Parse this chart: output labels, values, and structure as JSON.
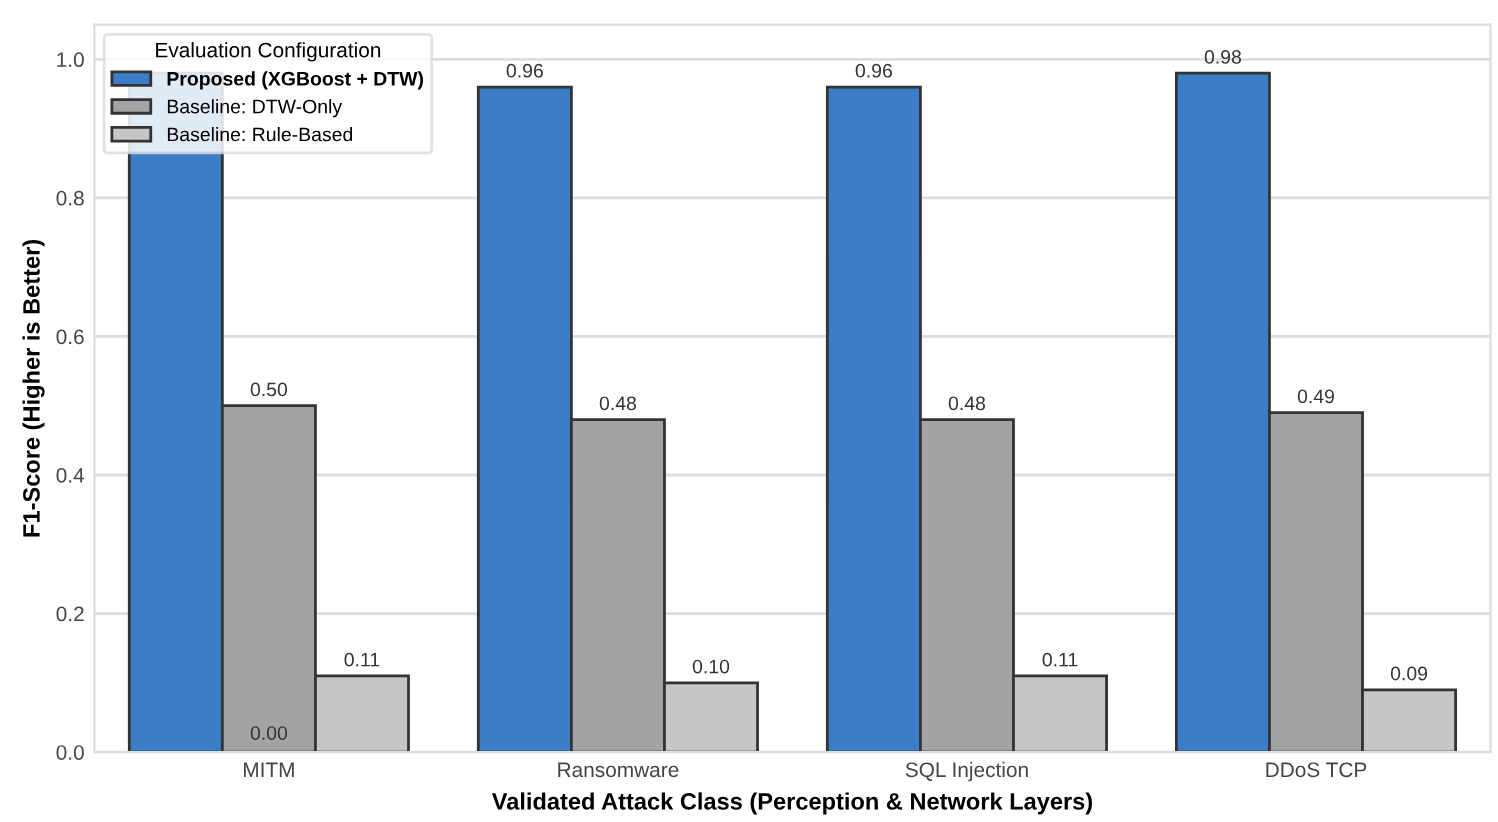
{
  "chart_data": {
    "type": "bar",
    "xlabel": "Validated Attack Class (Perception & Network Layers)",
    "ylabel": "F1-Score (Higher is Better)",
    "legend_title": "Evaluation Configuration",
    "categories": [
      "MITM",
      "Ransomware",
      "SQL Injection",
      "DDoS TCP"
    ],
    "series": [
      {
        "name": "Proposed (XGBoost + DTW)",
        "color": "#3b7dc6",
        "values": [
          0.98,
          0.96,
          0.96,
          0.98
        ],
        "value_labels": [
          null,
          "0.96",
          "0.96",
          "0.98"
        ]
      },
      {
        "name": "Baseline: DTW-Only",
        "color": "#a3a3a3",
        "values": [
          0.5,
          0.48,
          0.48,
          0.49
        ],
        "value_labels": [
          "0.50",
          "0.48",
          "0.48",
          "0.49"
        ]
      },
      {
        "name": "Baseline: Rule-Based",
        "color": "#c6c6c6",
        "values": [
          0.11,
          0.1,
          0.11,
          0.09
        ],
        "value_labels": [
          "0.11",
          "0.10",
          "0.11",
          "0.09"
        ]
      }
    ],
    "annotations": [
      {
        "text": "0.00",
        "x": "MITM",
        "y": 0
      }
    ],
    "ylim": [
      0,
      1.05
    ],
    "yticks": [
      {
        "value": 0,
        "label": "0.0"
      },
      {
        "value": 0.2,
        "label": "0.2"
      },
      {
        "value": 0.4,
        "label": "0.4"
      },
      {
        "value": 0.6,
        "label": "0.6"
      },
      {
        "value": 0.8,
        "label": "0.8"
      },
      {
        "value": 1.0,
        "label": "1.0"
      }
    ],
    "grid": "y",
    "legend": "top left"
  }
}
